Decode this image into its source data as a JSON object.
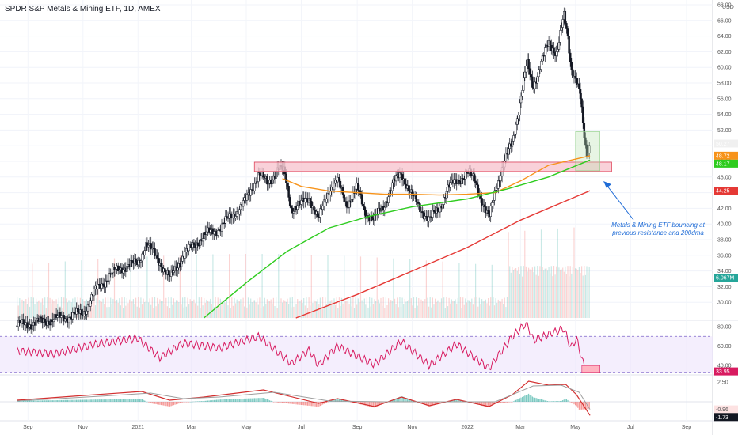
{
  "title": "SPDR S&P Metals & Mining ETF, 1D, AMEX",
  "currency": "USD",
  "annotation": "Metals & Mining ETF bouncing at previous resistance and 200dma",
  "colors": {
    "up": "#26a69a",
    "down": "#ef5350",
    "candle": "#131722",
    "ma_orange": "#f7931a",
    "ma_green": "#2ecc1f",
    "ma_red": "#e53935",
    "zone_fill": "#f7c6cf",
    "zone_stroke": "#e0455b",
    "rsi_line": "#d81b60",
    "rsi_band": "#ede3fb",
    "macd_line": "#d32f2f",
    "macd_signal": "#9e9e9e",
    "arrow": "#1e6bd6",
    "box": "#b9e3b3"
  },
  "chart_data": [
    {
      "type": "candlestick",
      "panel": "price",
      "title": "SPDR S&P Metals & Mining ETF, 1D, AMEX",
      "ylim": [
        28,
        68
      ],
      "yticks": [
        "30.00",
        "32.00",
        "34.00",
        "36.00",
        "38.00",
        "40.00",
        "42.00",
        "44.00",
        "46.00",
        "48.00",
        "50.00",
        "52.00",
        "54.00",
        "56.00",
        "58.00",
        "60.00",
        "62.00",
        "64.00",
        "66.00",
        "68.00"
      ],
      "x_labels": [
        "Sep",
        "Nov",
        "2021",
        "Mar",
        "May",
        "Jul",
        "Sep",
        "Nov",
        "2022",
        "Mar",
        "May",
        "Jul",
        "Sep"
      ],
      "price_path": [
        [
          "2020-08-20",
          27.0
        ],
        [
          "2020-09-15",
          27.5
        ],
        [
          "2020-10-15",
          28.2
        ],
        [
          "2020-11-01",
          28.6
        ],
        [
          "2020-11-15",
          31.5
        ],
        [
          "2020-12-01",
          33.5
        ],
        [
          "2020-12-15",
          34.5
        ],
        [
          "2021-01-01",
          35.0
        ],
        [
          "2021-01-10",
          37.5
        ],
        [
          "2021-01-25",
          35.2
        ],
        [
          "2021-02-05",
          33.0
        ],
        [
          "2021-02-20",
          36.0
        ],
        [
          "2021-03-01",
          37.0
        ],
        [
          "2021-03-15",
          38.5
        ],
        [
          "2021-04-01",
          39.5
        ],
        [
          "2021-04-15",
          41.0
        ],
        [
          "2021-05-01",
          43.0
        ],
        [
          "2021-05-15",
          46.5
        ],
        [
          "2021-05-25",
          45.0
        ],
        [
          "2021-06-05",
          47.3
        ],
        [
          "2021-06-12",
          46.5
        ],
        [
          "2021-06-20",
          42.0
        ],
        [
          "2021-07-01",
          42.5
        ],
        [
          "2021-07-10",
          43.5
        ],
        [
          "2021-07-20",
          40.5
        ],
        [
          "2021-08-01",
          44.5
        ],
        [
          "2021-08-10",
          45.5
        ],
        [
          "2021-08-20",
          42.5
        ],
        [
          "2021-09-01",
          44.5
        ],
        [
          "2021-09-10",
          41.5
        ],
        [
          "2021-09-20",
          40.5
        ],
        [
          "2021-10-01",
          42.5
        ],
        [
          "2021-10-10",
          45.0
        ],
        [
          "2021-10-20",
          46.5
        ],
        [
          "2021-11-01",
          43.5
        ],
        [
          "2021-11-10",
          42.0
        ],
        [
          "2021-11-20",
          40.5
        ],
        [
          "2021-12-01",
          42.0
        ],
        [
          "2021-12-10",
          44.5
        ],
        [
          "2021-12-20",
          45.5
        ],
        [
          "2022-01-01",
          46.5
        ],
        [
          "2022-01-10",
          45.5
        ],
        [
          "2022-01-20",
          42.0
        ],
        [
          "2022-01-25",
          40.5
        ],
        [
          "2022-02-01",
          44.5
        ],
        [
          "2022-02-10",
          47.5
        ],
        [
          "2022-02-20",
          50.5
        ],
        [
          "2022-03-01",
          56.0
        ],
        [
          "2022-03-08",
          60.5
        ],
        [
          "2022-03-15",
          57.5
        ],
        [
          "2022-03-22",
          60.0
        ],
        [
          "2022-04-01",
          63.0
        ],
        [
          "2022-04-10",
          62.0
        ],
        [
          "2022-04-18",
          66.5
        ],
        [
          "2022-04-22",
          64.0
        ],
        [
          "2022-04-26",
          60.0
        ],
        [
          "2022-05-02",
          58.5
        ],
        [
          "2022-05-06",
          56.5
        ],
        [
          "2022-05-10",
          51.5
        ],
        [
          "2022-05-13",
          48.5
        ],
        [
          "2022-05-17",
          50.3
        ]
      ],
      "last_price": 50.27,
      "ma_lines": [
        {
          "period": 50,
          "color": "#f7931a",
          "last": 48.72,
          "points": [
            [
              "2021-06-10",
              45.8
            ],
            [
              "2021-07-01",
              44.8
            ],
            [
              "2021-08-01",
              44.2
            ],
            [
              "2021-09-01",
              44.0
            ],
            [
              "2021-10-01",
              43.8
            ],
            [
              "2021-11-01",
              43.8
            ],
            [
              "2021-12-01",
              43.7
            ],
            [
              "2022-01-01",
              43.8
            ],
            [
              "2022-02-01",
              44.0
            ],
            [
              "2022-03-01",
              45.5
            ],
            [
              "2022-04-01",
              47.5
            ],
            [
              "2022-05-17",
              48.72
            ]
          ]
        },
        {
          "period": 200,
          "color": "#2ecc1f",
          "last": 48.17,
          "points": [
            [
              "2021-03-15",
              28.0
            ],
            [
              "2021-05-01",
              32.5
            ],
            [
              "2021-06-15",
              36.5
            ],
            [
              "2021-08-01",
              39.5
            ],
            [
              "2021-09-15",
              41.0
            ],
            [
              "2021-11-01",
              42.2
            ],
            [
              "2022-01-01",
              43.2
            ],
            [
              "2022-02-15",
              44.5
            ],
            [
              "2022-04-01",
              46.0
            ],
            [
              "2022-05-17",
              48.17
            ]
          ]
        },
        {
          "period": 500,
          "color": "#e53935",
          "last": 44.25,
          "points": [
            [
              "2021-06-25",
              28.0
            ],
            [
              "2021-09-01",
              31.0
            ],
            [
              "2021-11-01",
              34.0
            ],
            [
              "2022-01-01",
              37.0
            ],
            [
              "2022-03-01",
              40.5
            ],
            [
              "2022-05-17",
              44.25
            ]
          ]
        }
      ],
      "resistance_zone": {
        "from": "2021-05-10",
        "to": "2022-06-10",
        "low": 46.7,
        "high": 47.9
      },
      "volume_last": "6.067M",
      "price_tags": [
        "50.27",
        "48.72",
        "48.17",
        "44.25",
        "6.067M"
      ]
    },
    {
      "type": "line",
      "panel": "rsi",
      "ylim": [
        32,
        84
      ],
      "yticks": [
        "40.00",
        "60.00",
        "80.00"
      ],
      "bands": [
        30,
        70
      ],
      "last": 33.95,
      "last_label": "33.95",
      "points": [
        [
          "2020-08-20",
          55
        ],
        [
          "2020-10-01",
          52
        ],
        [
          "2020-11-15",
          62
        ],
        [
          "2021-01-01",
          68
        ],
        [
          "2021-01-25",
          48
        ],
        [
          "2021-02-20",
          63
        ],
        [
          "2021-04-01",
          58
        ],
        [
          "2021-05-15",
          70
        ],
        [
          "2021-06-20",
          42
        ],
        [
          "2021-07-10",
          56
        ],
        [
          "2021-07-20",
          40
        ],
        [
          "2021-08-10",
          60
        ],
        [
          "2021-09-20",
          41
        ],
        [
          "2021-10-20",
          65
        ],
        [
          "2021-11-20",
          40
        ],
        [
          "2021-12-20",
          62
        ],
        [
          "2022-01-25",
          37
        ],
        [
          "2022-02-20",
          70
        ],
        [
          "2022-03-08",
          84
        ],
        [
          "2022-03-15",
          66
        ],
        [
          "2022-04-18",
          78
        ],
        [
          "2022-04-26",
          58
        ],
        [
          "2022-05-02",
          68
        ],
        [
          "2022-05-10",
          40
        ],
        [
          "2022-05-17",
          33.95
        ]
      ]
    },
    {
      "type": "line",
      "panel": "macd",
      "ylim": [
        -2.2,
        3.2
      ],
      "yticks": [
        "2.50"
      ],
      "last_values": [
        "-0.96",
        "-1.73"
      ],
      "series": [
        {
          "name": "",
          "color": "#d32f2f",
          "last": -1.73,
          "points": [
            [
              "2020-08-20",
              0.2
            ],
            [
              "2020-11-15",
              0.9
            ],
            [
              "2021-01-05",
              1.3
            ],
            [
              "2021-02-05",
              0.2
            ],
            [
              "2021-03-15",
              0.6
            ],
            [
              "2021-05-20",
              1.5
            ],
            [
              "2021-07-20",
              -0.2
            ],
            [
              "2021-08-10",
              0.4
            ],
            [
              "2021-09-20",
              -0.6
            ],
            [
              "2021-10-20",
              0.6
            ],
            [
              "2021-11-20",
              -0.5
            ],
            [
              "2021-12-20",
              0.3
            ],
            [
              "2022-01-25",
              -0.6
            ],
            [
              "2022-02-20",
              0.9
            ],
            [
              "2022-03-10",
              2.6
            ],
            [
              "2022-04-01",
              2.1
            ],
            [
              "2022-04-20",
              2.2
            ],
            [
              "2022-05-02",
              0.9
            ],
            [
              "2022-05-17",
              -1.73
            ]
          ]
        },
        {
          "name": "",
          "color": "#9e9e9e",
          "last": -0.96,
          "points": [
            [
              "2020-08-20",
              0.1
            ],
            [
              "2020-11-20",
              0.7
            ],
            [
              "2021-01-15",
              1.1
            ],
            [
              "2021-02-20",
              0.4
            ],
            [
              "2021-04-01",
              0.6
            ],
            [
              "2021-06-01",
              1.2
            ],
            [
              "2021-08-01",
              0.1
            ],
            [
              "2021-10-01",
              0.0
            ],
            [
              "2021-12-01",
              0.0
            ],
            [
              "2022-02-01",
              0.0
            ],
            [
              "2022-03-15",
              2.0
            ],
            [
              "2022-04-15",
              2.1
            ],
            [
              "2022-05-05",
              1.2
            ],
            [
              "2022-05-17",
              -0.96
            ]
          ]
        }
      ]
    }
  ]
}
